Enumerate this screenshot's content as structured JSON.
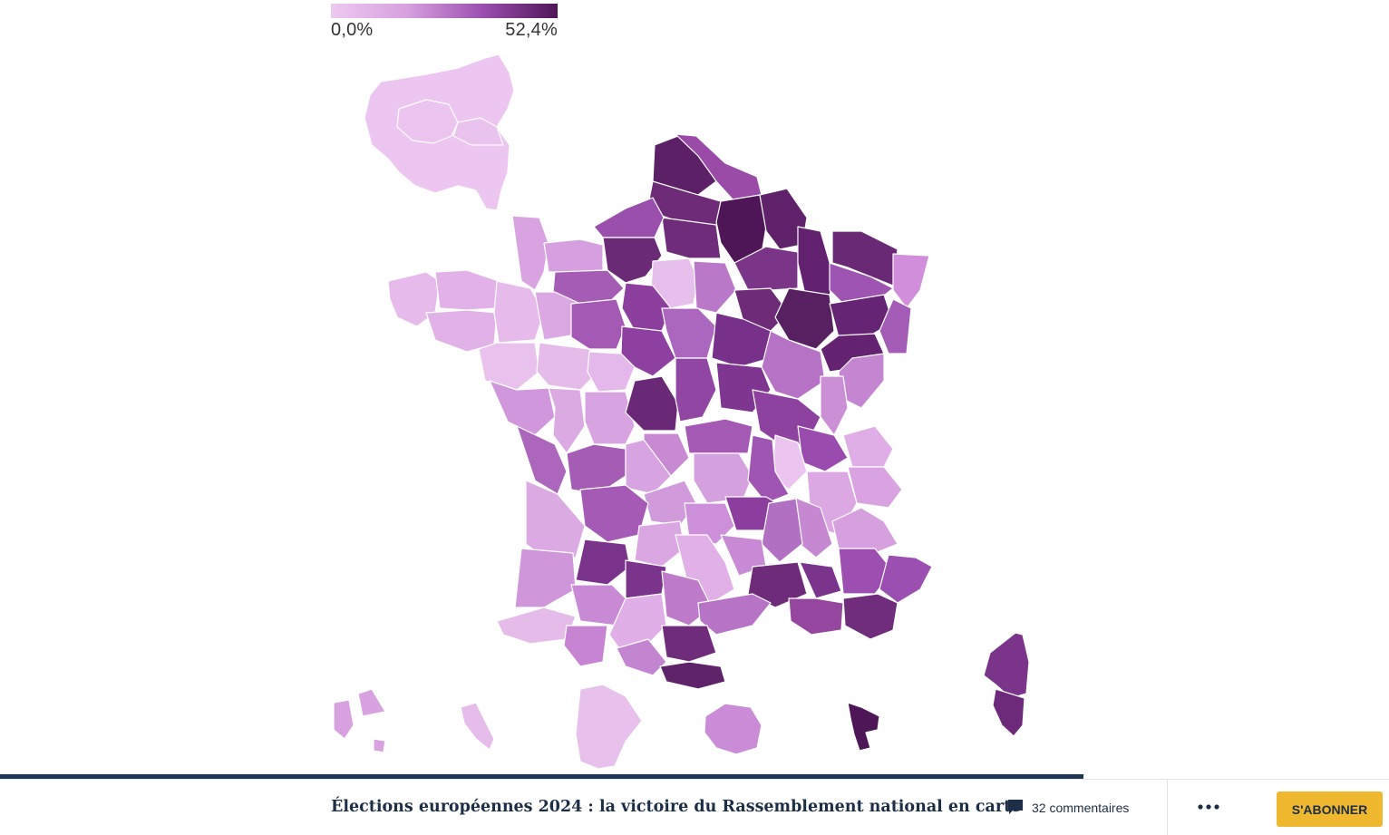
{
  "legend": {
    "min_label": "0,0%",
    "max_label": "52,4%",
    "scale_colors": [
      "#edc8f0",
      "#d7a1df",
      "#9c4fb1",
      "#4f1657"
    ]
  },
  "article": {
    "title": "Élections européennes 2024 : la victoire du Rassemblement national en carte",
    "comments_label": "32 commentaires",
    "subscribe_label": "S'ABONNER",
    "more_icon": "more-dots-icon",
    "comment_icon": "comment-bubble-icon",
    "read_progress": 0.78
  },
  "colors": {
    "navy": "#1d2e47",
    "accent": "#efb82f"
  }
}
